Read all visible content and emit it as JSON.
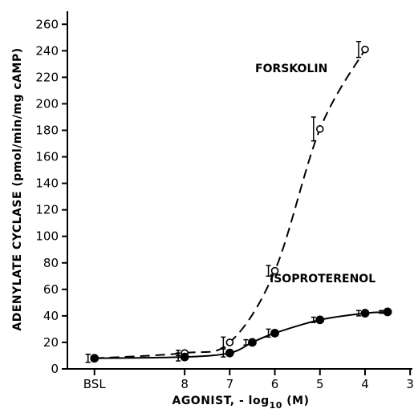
{
  "chart_data": {
    "type": "line",
    "ylabel": "ADENYLATE CYCLASE (pmol/min/mg cAMP)",
    "xlabel_prefix": "AGONIST, - log",
    "xlabel_sub": "10",
    "xlabel_suffix": " (M)",
    "x_ticks": [
      {
        "label": "BSL",
        "pos": 10
      },
      {
        "label": "8",
        "pos": 8
      },
      {
        "label": "7",
        "pos": 7
      },
      {
        "label": "6",
        "pos": 6
      },
      {
        "label": "5",
        "pos": 5
      },
      {
        "label": "4",
        "pos": 4
      },
      {
        "label": "3",
        "pos": 3
      }
    ],
    "xlim": [
      10.6,
      2.95
    ],
    "ylim": [
      0,
      265
    ],
    "y_ticks": [
      0,
      20,
      40,
      60,
      80,
      100,
      120,
      140,
      160,
      180,
      200,
      220,
      240,
      260
    ],
    "series": [
      {
        "name": "FORSKOLIN",
        "marker": "open-circle",
        "line": "dashed",
        "x": [
          10,
          8,
          7,
          6,
          5,
          4
        ],
        "y": [
          8,
          12,
          20,
          74,
          181,
          241
        ],
        "err": [
          3,
          2,
          4,
          4,
          9,
          6
        ]
      },
      {
        "name": "ISOPROTERENOL",
        "marker": "filled-circle",
        "line": "solid",
        "x": [
          10,
          8,
          7,
          6.5,
          6,
          5,
          4,
          3.5
        ],
        "y": [
          8,
          9,
          12,
          20,
          27,
          37,
          42,
          43
        ],
        "err": [
          3,
          3,
          3,
          2,
          3,
          2,
          2,
          1
        ]
      }
    ]
  }
}
